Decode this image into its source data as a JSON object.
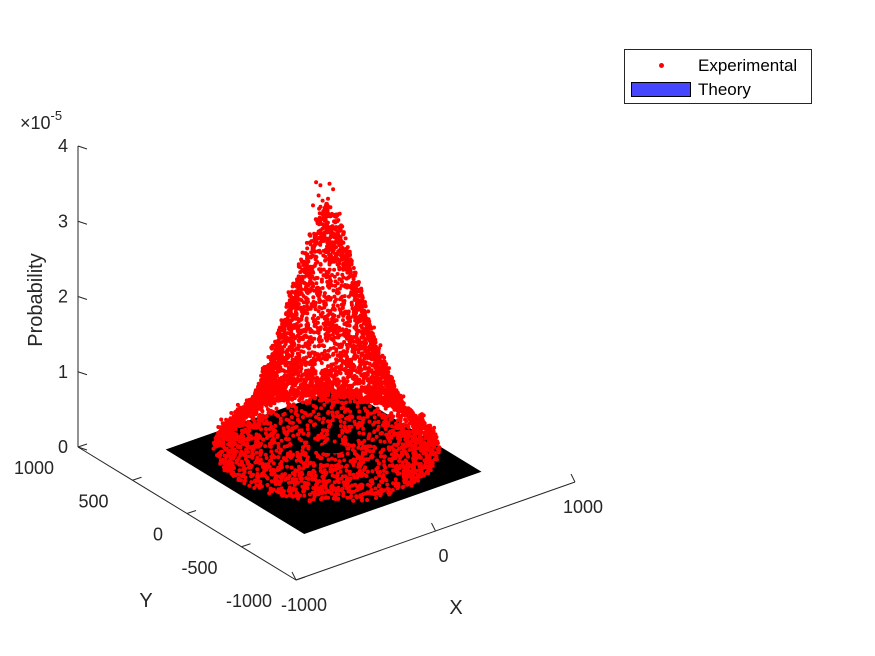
{
  "chart_data": {
    "type": "scatter",
    "title": "",
    "xlabel": "X",
    "ylabel": "Y",
    "zlabel": "Probability",
    "z_exponent_label": "10",
    "z_exponent_power": "-5",
    "z_exponent_times": "×",
    "xlim": [
      -1000,
      1000
    ],
    "ylim": [
      -1000,
      1000
    ],
    "zlim": [
      0,
      4
    ],
    "x_ticks": [
      -1000,
      0,
      1000
    ],
    "x_tick_labels": [
      "-1000",
      "0",
      "1000"
    ],
    "y_ticks": [
      -1000,
      -500,
      0,
      500,
      1000
    ],
    "y_tick_labels": [
      "-1000",
      "-500",
      "0",
      "500",
      "1000"
    ],
    "z_ticks": [
      0,
      1,
      2,
      3,
      4
    ],
    "z_tick_labels": [
      "0",
      "1",
      "2",
      "3",
      "4"
    ],
    "grid": false,
    "legend_position": "top-right",
    "series": [
      {
        "name": "Experimental",
        "kind": "points",
        "color": "#ff0000",
        "description_peak": 3.8,
        "peak_at": [
          0,
          0
        ]
      },
      {
        "name": "Theory",
        "kind": "surface",
        "color": "#4646ff",
        "face": "#000000"
      }
    ]
  },
  "legend": {
    "items": [
      {
        "label": "Experimental",
        "color": "#ff0000"
      },
      {
        "label": "Theory",
        "color": "#4646ff"
      }
    ]
  }
}
